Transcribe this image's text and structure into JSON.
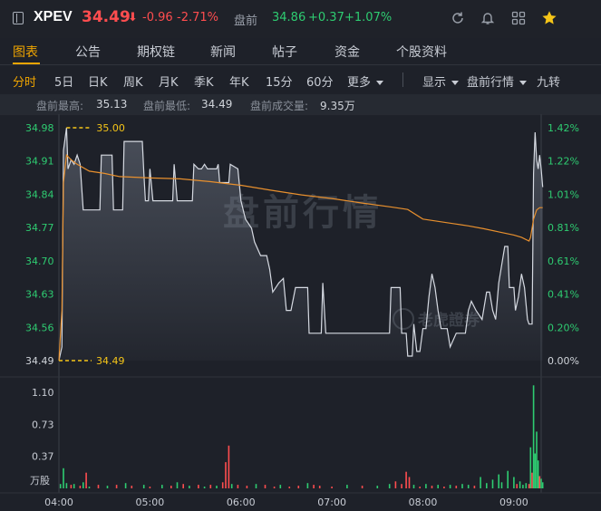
{
  "header": {
    "symbol": "XPEV",
    "price": "34.49",
    "arrow": "⬇",
    "change": "-0.96",
    "change_pct": "-2.71%",
    "premarket_label": "盘前",
    "premarket_price": "34.86",
    "premarket_change": "+0.37",
    "premarket_pct": "+1.07%",
    "colors": {
      "down": "#ff4d4f",
      "up": "#2ecc71",
      "accent": "#f0a500"
    },
    "icons": [
      "panel-icon",
      "refresh-icon",
      "bell-icon",
      "grid-icon",
      "star-icon"
    ]
  },
  "tabs": [
    "图表",
    "公告",
    "期权链",
    "新闻",
    "帖子",
    "资金",
    "个股资料"
  ],
  "periods": [
    "分时",
    "5日",
    "日K",
    "周K",
    "月K",
    "季K",
    "年K",
    "15分",
    "60分",
    "更多"
  ],
  "controls": [
    "显示",
    "盘前行情",
    "九转"
  ],
  "stats": [
    {
      "label": "盘前最高:",
      "value": "35.13"
    },
    {
      "label": "盘前最低:",
      "value": "34.49"
    },
    {
      "label": "盘前成交量:",
      "value": "9.35万"
    }
  ],
  "chart_data": {
    "type": "line",
    "title": "",
    "watermark": "盘前行情",
    "logo_text": "老虎證券",
    "x_ticks": [
      "04:00",
      "05:00",
      "06:00",
      "07:00",
      "08:00",
      "09:00"
    ],
    "x_range": [
      "04:00",
      "09:18"
    ],
    "y_ticks": [
      "34.98",
      "34.91",
      "34.84",
      "34.77",
      "34.70",
      "34.63",
      "34.56",
      "34.49"
    ],
    "pct_ticks": [
      "1.42%",
      "1.22%",
      "1.01%",
      "0.81%",
      "0.61%",
      "0.41%",
      "0.20%",
      "0.00%"
    ],
    "ylim": [
      34.49,
      35.0
    ],
    "marker_high": "35.00",
    "marker_low": "34.49",
    "price_series": {
      "name": "",
      "points": [
        [
          0,
          34.49
        ],
        [
          2,
          34.52
        ],
        [
          3,
          34.95
        ],
        [
          5,
          35.0
        ],
        [
          6,
          34.91
        ],
        [
          8,
          34.93
        ],
        [
          10,
          34.92
        ],
        [
          12,
          34.94
        ],
        [
          14,
          34.92
        ],
        [
          16,
          34.82
        ],
        [
          27,
          34.82
        ],
        [
          28,
          34.94
        ],
        [
          35,
          34.94
        ],
        [
          36,
          34.82
        ],
        [
          42,
          34.82
        ],
        [
          43,
          34.97
        ],
        [
          55,
          34.97
        ],
        [
          56,
          34.9
        ],
        [
          57,
          34.84
        ],
        [
          59,
          34.84
        ],
        [
          60,
          34.91
        ],
        [
          62,
          34.84
        ],
        [
          75,
          34.84
        ],
        [
          76,
          34.92
        ],
        [
          78,
          34.84
        ],
        [
          88,
          34.84
        ],
        [
          89,
          34.92
        ],
        [
          92,
          34.91
        ],
        [
          94,
          34.91
        ],
        [
          96,
          34.92
        ],
        [
          98,
          34.91
        ],
        [
          104,
          34.91
        ],
        [
          105,
          34.92
        ],
        [
          106,
          34.88
        ],
        [
          112,
          34.88
        ],
        [
          113,
          34.92
        ],
        [
          118,
          34.91
        ],
        [
          120,
          34.84
        ],
        [
          123,
          34.8
        ],
        [
          127,
          34.78
        ],
        [
          129,
          34.75
        ],
        [
          133,
          34.72
        ],
        [
          137,
          34.72
        ],
        [
          139,
          34.69
        ],
        [
          141,
          34.64
        ],
        [
          145,
          34.66
        ],
        [
          148,
          34.67
        ],
        [
          150,
          34.6
        ],
        [
          153,
          34.6
        ],
        [
          156,
          34.65
        ],
        [
          164,
          34.65
        ],
        [
          165,
          34.55
        ],
        [
          173,
          34.55
        ],
        [
          174,
          34.66
        ],
        [
          176,
          34.55
        ],
        [
          218,
          34.55
        ],
        [
          219,
          34.65
        ],
        [
          225,
          34.65
        ],
        [
          226,
          34.55
        ],
        [
          229,
          34.55
        ],
        [
          230,
          34.5
        ],
        [
          233,
          34.5
        ],
        [
          234,
          34.57
        ],
        [
          236,
          34.51
        ],
        [
          238,
          34.51
        ],
        [
          240,
          34.56
        ],
        [
          242,
          34.56
        ],
        [
          244,
          34.63
        ],
        [
          246,
          34.68
        ],
        [
          248,
          34.65
        ],
        [
          250,
          34.6
        ],
        [
          252,
          34.56
        ],
        [
          256,
          34.56
        ],
        [
          258,
          34.52
        ],
        [
          262,
          34.55
        ],
        [
          264,
          34.55
        ],
        [
          268,
          34.55
        ],
        [
          270,
          34.6
        ],
        [
          272,
          34.62
        ],
        [
          275,
          34.6
        ],
        [
          279,
          34.58
        ],
        [
          282,
          34.64
        ],
        [
          284,
          34.64
        ],
        [
          286,
          34.6
        ],
        [
          288,
          34.58
        ],
        [
          290,
          34.66
        ],
        [
          292,
          34.7
        ],
        [
          294,
          34.74
        ],
        [
          296,
          34.74
        ],
        [
          297,
          34.65
        ],
        [
          300,
          34.65
        ],
        [
          301,
          34.6
        ],
        [
          303,
          34.63
        ],
        [
          305,
          34.68
        ],
        [
          307,
          34.65
        ],
        [
          309,
          34.58
        ],
        [
          310,
          34.57
        ],
        [
          312,
          34.57
        ],
        [
          313,
          34.9
        ],
        [
          314,
          34.99
        ],
        [
          315,
          34.93
        ],
        [
          316,
          34.91
        ],
        [
          317,
          34.94
        ],
        [
          318,
          34.91
        ],
        [
          319,
          34.87
        ]
      ]
    },
    "avg_series": {
      "name": "",
      "points": [
        [
          0,
          34.49
        ],
        [
          2,
          34.6
        ],
        [
          3,
          34.88
        ],
        [
          5,
          34.94
        ],
        [
          8,
          34.93
        ],
        [
          12,
          34.92
        ],
        [
          20,
          34.905
        ],
        [
          30,
          34.9
        ],
        [
          40,
          34.893
        ],
        [
          60,
          34.89
        ],
        [
          80,
          34.888
        ],
        [
          100,
          34.882
        ],
        [
          120,
          34.874
        ],
        [
          140,
          34.863
        ],
        [
          160,
          34.853
        ],
        [
          180,
          34.845
        ],
        [
          200,
          34.835
        ],
        [
          220,
          34.826
        ],
        [
          230,
          34.821
        ],
        [
          240,
          34.8
        ],
        [
          250,
          34.795
        ],
        [
          260,
          34.79
        ],
        [
          270,
          34.785
        ],
        [
          280,
          34.779
        ],
        [
          290,
          34.772
        ],
        [
          300,
          34.765
        ],
        [
          305,
          34.76
        ],
        [
          310,
          34.752
        ],
        [
          311,
          34.76
        ],
        [
          313,
          34.8
        ],
        [
          315,
          34.82
        ],
        [
          317,
          34.825
        ],
        [
          319,
          34.825
        ]
      ]
    },
    "volume_ticks": [
      "1.10",
      "0.73",
      "0.37"
    ],
    "volume_unit": "万股",
    "volume_max": 1.1,
    "volume_bars": [
      [
        1,
        0.05,
        "up"
      ],
      [
        3,
        0.23,
        "up"
      ],
      [
        5,
        0.06,
        "up"
      ],
      [
        8,
        0.04,
        "down"
      ],
      [
        10,
        0.05,
        "up"
      ],
      [
        14,
        0.03,
        "down"
      ],
      [
        16,
        0.07,
        "up"
      ],
      [
        18,
        0.18,
        "down"
      ],
      [
        20,
        0.02,
        "up"
      ],
      [
        26,
        0.04,
        "down"
      ],
      [
        32,
        0.03,
        "up"
      ],
      [
        38,
        0.04,
        "down"
      ],
      [
        44,
        0.06,
        "up"
      ],
      [
        48,
        0.03,
        "down"
      ],
      [
        56,
        0.04,
        "up"
      ],
      [
        60,
        0.02,
        "down"
      ],
      [
        68,
        0.04,
        "up"
      ],
      [
        74,
        0.03,
        "down"
      ],
      [
        78,
        0.07,
        "up"
      ],
      [
        82,
        0.05,
        "down"
      ],
      [
        86,
        0.03,
        "up"
      ],
      [
        92,
        0.04,
        "down"
      ],
      [
        96,
        0.02,
        "up"
      ],
      [
        100,
        0.04,
        "down"
      ],
      [
        104,
        0.03,
        "up"
      ],
      [
        108,
        0.07,
        "down"
      ],
      [
        110,
        0.3,
        "down"
      ],
      [
        112,
        0.49,
        "down"
      ],
      [
        114,
        0.05,
        "up"
      ],
      [
        118,
        0.04,
        "down"
      ],
      [
        124,
        0.03,
        "down"
      ],
      [
        130,
        0.05,
        "up"
      ],
      [
        136,
        0.04,
        "down"
      ],
      [
        142,
        0.02,
        "down"
      ],
      [
        146,
        0.04,
        "up"
      ],
      [
        152,
        0.02,
        "down"
      ],
      [
        158,
        0.03,
        "down"
      ],
      [
        164,
        0.06,
        "up"
      ],
      [
        168,
        0.04,
        "down"
      ],
      [
        172,
        0.03,
        "down"
      ],
      [
        180,
        0.02,
        "down"
      ],
      [
        190,
        0.04,
        "up"
      ],
      [
        200,
        0.03,
        "down"
      ],
      [
        210,
        0.03,
        "up"
      ],
      [
        218,
        0.05,
        "up"
      ],
      [
        222,
        0.08,
        "down"
      ],
      [
        226,
        0.05,
        "down"
      ],
      [
        229,
        0.19,
        "down"
      ],
      [
        231,
        0.13,
        "down"
      ],
      [
        234,
        0.04,
        "up"
      ],
      [
        238,
        0.02,
        "down"
      ],
      [
        242,
        0.05,
        "up"
      ],
      [
        246,
        0.03,
        "down"
      ],
      [
        250,
        0.04,
        "up"
      ],
      [
        254,
        0.02,
        "down"
      ],
      [
        258,
        0.04,
        "up"
      ],
      [
        262,
        0.03,
        "down"
      ],
      [
        266,
        0.05,
        "up"
      ],
      [
        270,
        0.04,
        "up"
      ],
      [
        274,
        0.03,
        "down"
      ],
      [
        278,
        0.13,
        "up"
      ],
      [
        282,
        0.06,
        "up"
      ],
      [
        286,
        0.1,
        "up"
      ],
      [
        290,
        0.16,
        "up"
      ],
      [
        292,
        0.07,
        "up"
      ],
      [
        296,
        0.2,
        "up"
      ],
      [
        300,
        0.13,
        "up"
      ],
      [
        302,
        0.05,
        "down"
      ],
      [
        304,
        0.08,
        "up"
      ],
      [
        306,
        0.04,
        "up"
      ],
      [
        308,
        0.06,
        "up"
      ],
      [
        310,
        0.05,
        "down"
      ],
      [
        311,
        0.47,
        "up"
      ],
      [
        312,
        0.18,
        "down"
      ],
      [
        313,
        1.18,
        "up"
      ],
      [
        314,
        0.4,
        "up"
      ],
      [
        315,
        0.65,
        "up"
      ],
      [
        316,
        0.32,
        "up"
      ],
      [
        317,
        0.14,
        "down"
      ],
      [
        318,
        0.11,
        "up"
      ],
      [
        319,
        0.07,
        "up"
      ]
    ]
  }
}
